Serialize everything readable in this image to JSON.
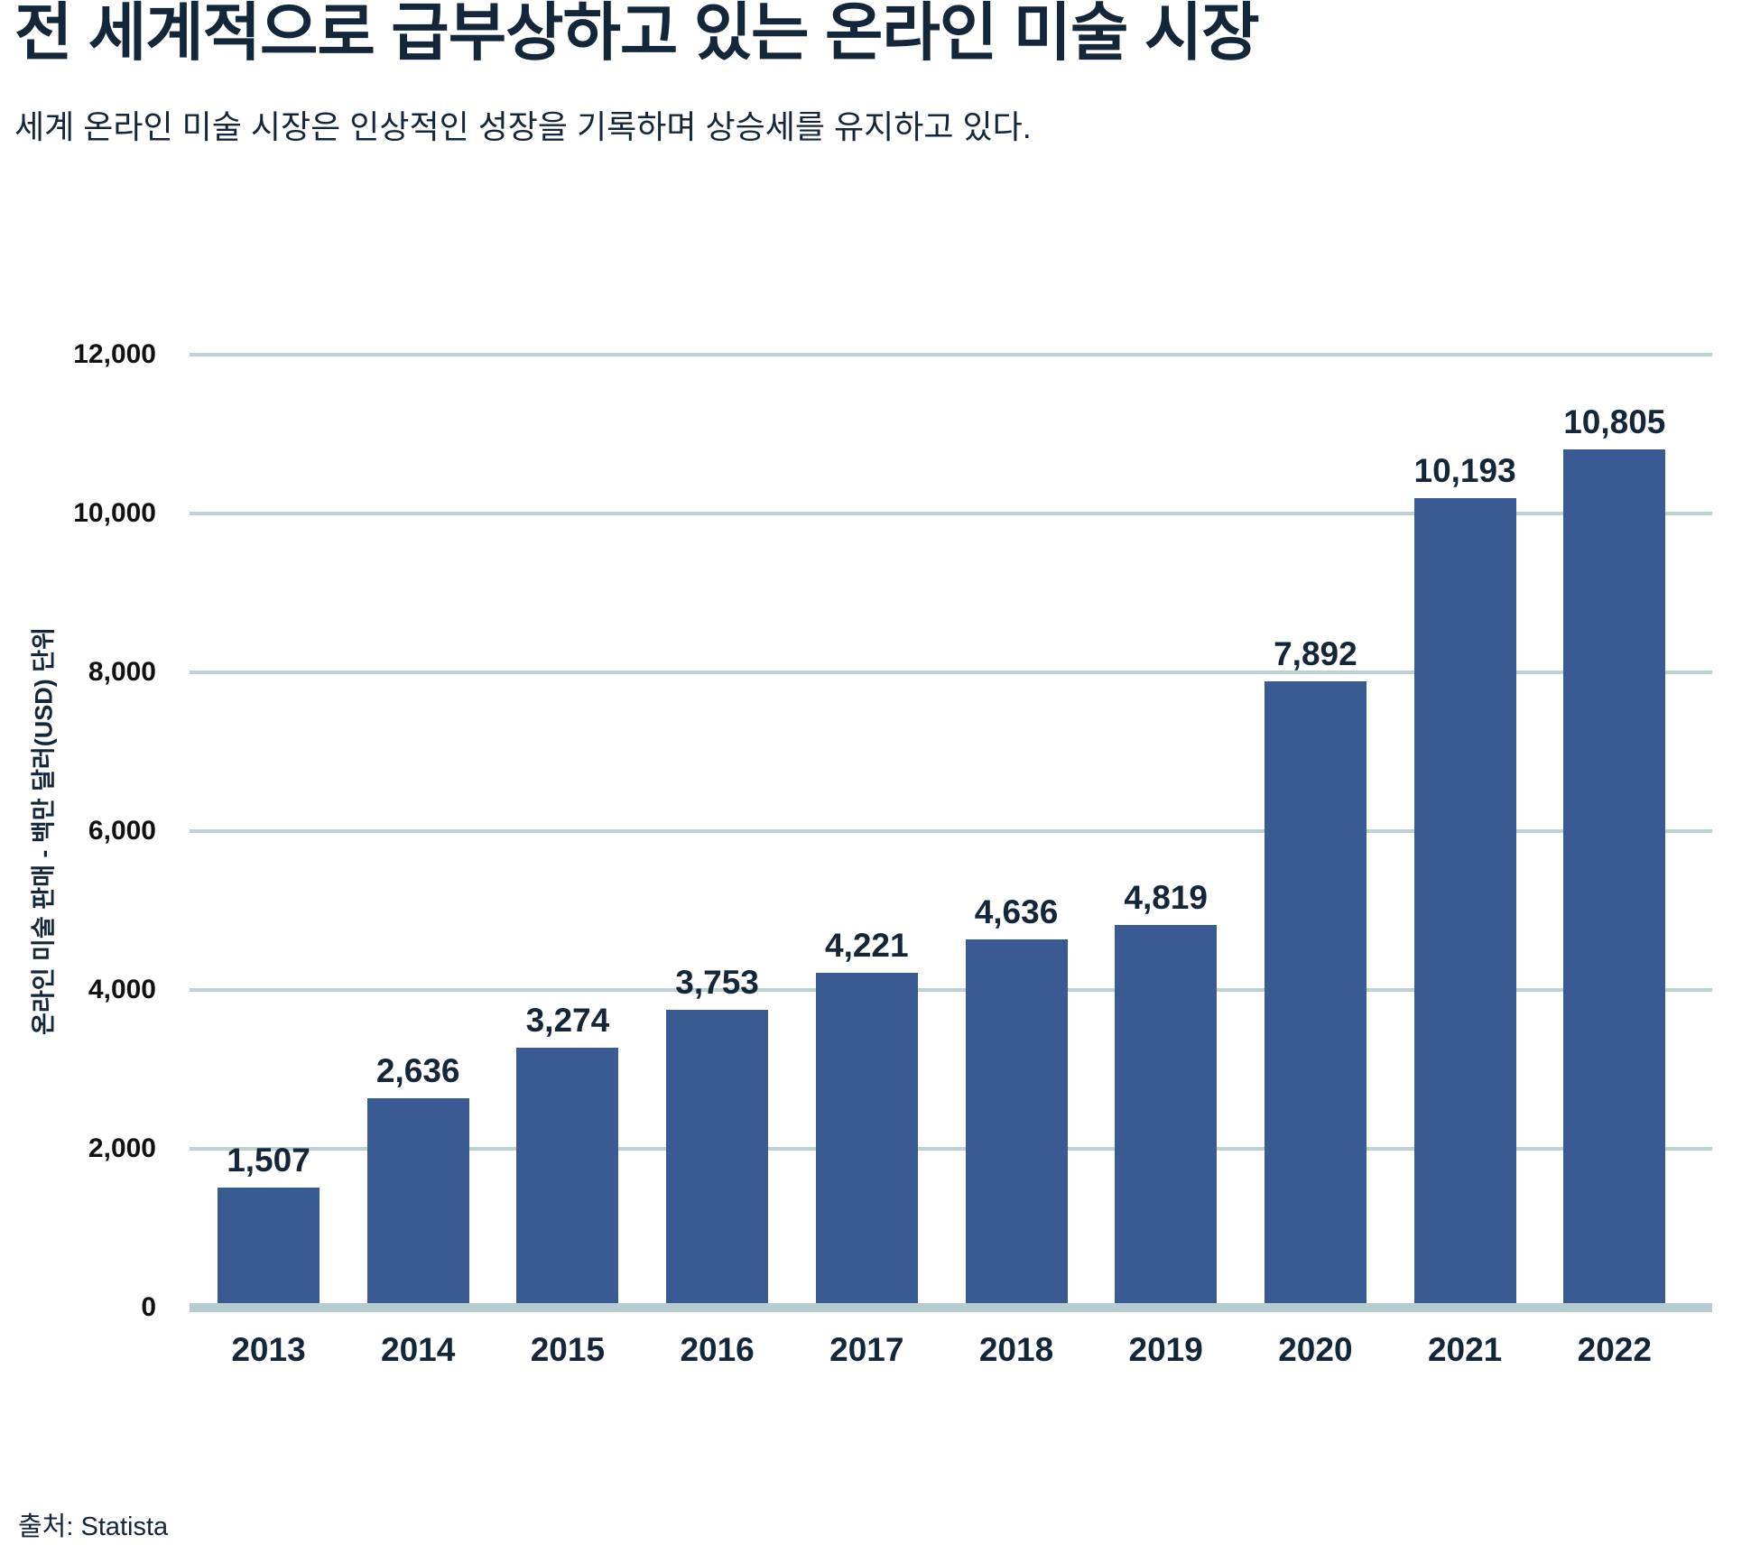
{
  "header": {
    "title": "전 세계적으로 급부상하고 있는 온라인 미술 시장",
    "subtitle": "세계 온라인 미술 시장은 인상적인 성장을 기록하며 상승세를 유지하고 있다."
  },
  "footer": {
    "source": "출처: Statista"
  },
  "chart_data": {
    "type": "bar",
    "title": "전 세계적으로 급부상하고 있는 온라인 미술 시장",
    "subtitle": "세계 온라인 미술 시장은 인상적인 성장을 기록하며 상승세를 유지하고 있다.",
    "categories": [
      "2013",
      "2014",
      "2015",
      "2016",
      "2017",
      "2018",
      "2019",
      "2020",
      "2021",
      "2022"
    ],
    "values": [
      1507,
      2636,
      3274,
      3753,
      4221,
      4636,
      4819,
      7892,
      10193,
      10805
    ],
    "value_labels": [
      "1,507",
      "2,636",
      "3,274",
      "3,753",
      "4,221",
      "4,636",
      "4,819",
      "7,892",
      "10,193",
      "10,805"
    ],
    "xlabel": "",
    "ylabel": "온라인 미술 판매 - 백만 달러(USD) 단위",
    "ylim": [
      0,
      12000
    ],
    "yticks": [
      0,
      2000,
      4000,
      6000,
      8000,
      10000,
      12000
    ],
    "ytick_labels": [
      "0",
      "2,000",
      "4,000",
      "6,000",
      "8,000",
      "10,000",
      "12,000"
    ],
    "grid": "horizontal-only",
    "legend": "none",
    "source": "출처: Statista",
    "colors": {
      "bar": "#3A5A94",
      "gridline": "#BCD2D3",
      "baseline": "#B5CDD0",
      "title_text": "#14263A",
      "tick_text": "#111111",
      "background": "#FFFFFF"
    }
  }
}
